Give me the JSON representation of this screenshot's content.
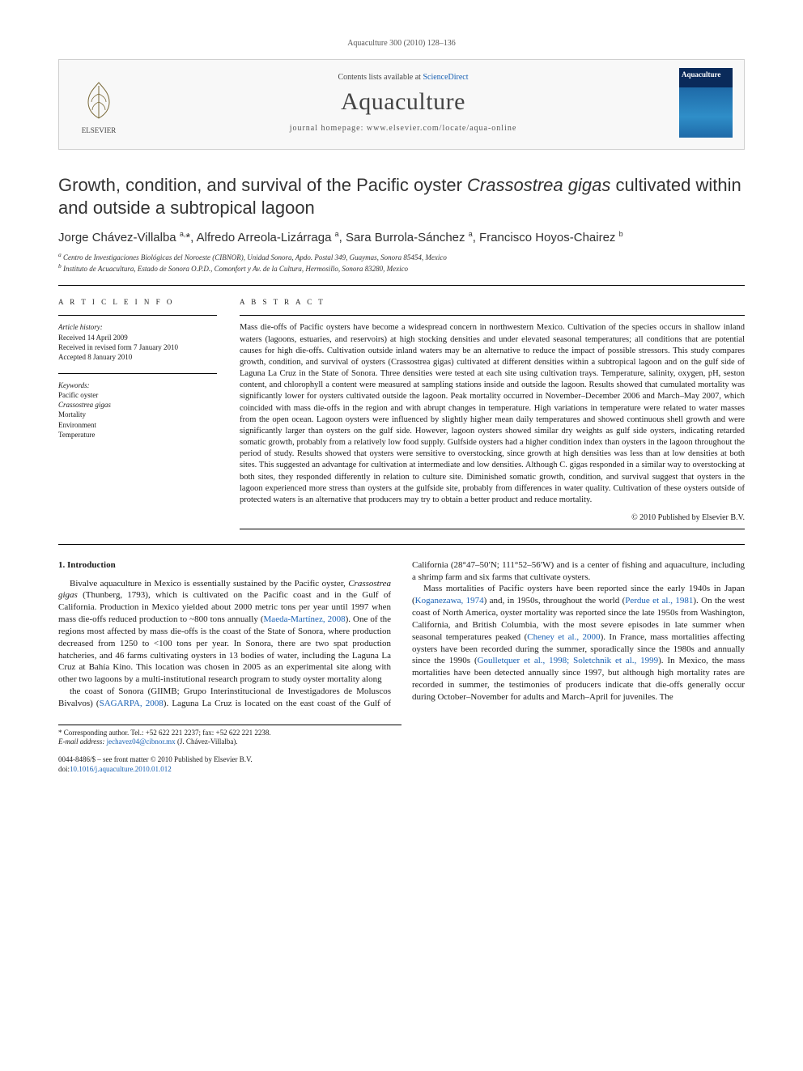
{
  "running_head": "Aquaculture 300 (2010) 128–136",
  "header": {
    "contents_line_pre": "Contents lists available at ",
    "contents_link": "ScienceDirect",
    "journal": "Aquaculture",
    "homepage_label": "journal homepage: ",
    "homepage_url": "www.elsevier.com/locate/aqua-online",
    "publisher": "ELSEVIER",
    "cover_label": "Aquaculture"
  },
  "title_html": "Growth, condition, and survival of the Pacific oyster <em>Crassostrea gigas</em> cultivated within and outside a subtropical lagoon",
  "authors_html": "Jorge Chávez-Villalba <sup>a,</sup>*, Alfredo Arreola-Lizárraga <sup>a</sup>, Sara Burrola-Sánchez <sup>a</sup>, Francisco Hoyos-Chairez <sup>b</sup>",
  "affiliations": {
    "a": "Centro de Investigaciones Biológicas del Noroeste (CIBNOR), Unidad Sonora, Apdo. Postal 349, Guaymas, Sonora 85454, Mexico",
    "b": "Instituto de Acuacultura, Estado de Sonora O.P.D., Comonfort y Av. de la Cultura, Hermosillo, Sonora 83280, Mexico"
  },
  "article_info": {
    "heading": "A R T I C L E   I N F O",
    "history_label": "Article history:",
    "history": [
      "Received 14 April 2009",
      "Received in revised form 7 January 2010",
      "Accepted 8 January 2010"
    ],
    "keywords_label": "Keywords:",
    "keywords": [
      "Pacific oyster",
      "Crassostrea gigas",
      "Mortality",
      "Environment",
      "Temperature"
    ]
  },
  "abstract": {
    "heading": "A B S T R A C T",
    "text": "Mass die-offs of Pacific oysters have become a widespread concern in northwestern Mexico. Cultivation of the species occurs in shallow inland waters (lagoons, estuaries, and reservoirs) at high stocking densities and under elevated seasonal temperatures; all conditions that are potential causes for high die-offs. Cultivation outside inland waters may be an alternative to reduce the impact of possible stressors. This study compares growth, condition, and survival of oysters (Crassostrea gigas) cultivated at different densities within a subtropical lagoon and on the gulf side of Laguna La Cruz in the State of Sonora. Three densities were tested at each site using cultivation trays. Temperature, salinity, oxygen, pH, seston content, and chlorophyll a content were measured at sampling stations inside and outside the lagoon. Results showed that cumulated mortality was significantly lower for oysters cultivated outside the lagoon. Peak mortality occurred in November–December 2006 and March–May 2007, which coincided with mass die-offs in the region and with abrupt changes in temperature. High variations in temperature were related to water masses from the open ocean. Lagoon oysters were influenced by slightly higher mean daily temperatures and showed continuous shell growth and were significantly larger than oysters on the gulf side. However, lagoon oysters showed similar dry weights as gulf side oysters, indicating retarded somatic growth, probably from a relatively low food supply. Gulfside oysters had a higher condition index than oysters in the lagoon throughout the period of study. Results showed that oysters were sensitive to overstocking, since growth at high densities was less than at low densities at both sites. This suggested an advantage for cultivation at intermediate and low densities. Although C. gigas responded in a similar way to overstocking at both sites, they responded differently in relation to culture site. Diminished somatic growth, condition, and survival suggest that oysters in the lagoon experienced more stress than oysters at the gulfside site, probably from differences in water quality. Cultivation of these oysters outside of protected waters is an alternative that producers may try to obtain a better product and reduce mortality.",
    "copyright": "© 2010 Published by Elsevier B.V."
  },
  "body": {
    "section_heading": "1. Introduction",
    "p1_html": "Bivalve aquaculture in Mexico is essentially sustained by the Pacific oyster, <em>Crassostrea gigas</em> (Thunberg, 1793), which is cultivated on the Pacific coast and in the Gulf of California. Production in Mexico yielded about 2000 metric tons per year until 1997 when mass die-offs reduced production to ~800 tons annually (<a href=\"#\" data-name=\"ref-link\" data-interactable=\"true\">Maeda-Martínez, 2008</a>). One of the regions most affected by mass die-offs is the coast of the State of Sonora, where production decreased from 1250 to &lt;100 tons per year. In Sonora, there are two spat production hatcheries, and 46 farms cultivating oysters in 13 bodies of water, including the Laguna La Cruz at Bahía Kino. This location was chosen in 2005 as an experimental site along with other two lagoons by a multi-institutional research program to study oyster mortality along",
    "p2_html": "the coast of Sonora (GIIMB; Grupo Interinstitucional de Investigadores de Moluscos Bivalvos) (<a href=\"#\" data-name=\"ref-link\" data-interactable=\"true\">SAGARPA, 2008</a>). Laguna La Cruz is located on the east coast of the Gulf of California (28°47–50′N; 111°52–56′W) and is a center of fishing and aquaculture, including a shrimp farm and six farms that cultivate oysters.",
    "p3_html": "Mass mortalities of Pacific oysters have been reported since the early 1940s in Japan (<a href=\"#\" data-name=\"ref-link\" data-interactable=\"true\">Koganezawa, 1974</a>) and, in 1950s, throughout the world (<a href=\"#\" data-name=\"ref-link\" data-interactable=\"true\">Perdue et al., 1981</a>). On the west coast of North America, oyster mortality was reported since the late 1950s from Washington, California, and British Columbia, with the most severe episodes in late summer when seasonal temperatures peaked (<a href=\"#\" data-name=\"ref-link\" data-interactable=\"true\">Cheney et al., 2000</a>). In France, mass mortalities affecting oysters have been recorded during the summer, sporadically since the 1980s and annually since the 1990s (<a href=\"#\" data-name=\"ref-link\" data-interactable=\"true\">Goulletquer et al., 1998; Soletchnik et al., 1999</a>). In Mexico, the mass mortalities have been detected annually since 1997, but although high mortality rates are recorded in summer, the testimonies of producers indicate that die-offs generally occur during October–November for adults and March–April for juveniles. The"
  },
  "footnote": {
    "corr_label": "* Corresponding author. Tel.: +52 622 221 2237; fax: +52 622 221 2238.",
    "email_label": "E-mail address:",
    "email": "jechavez04@cibnor.mx",
    "email_owner": "(J. Chávez-Villalba)."
  },
  "bottom": {
    "line1": "0044-8486/$ – see front matter © 2010 Published by Elsevier B.V.",
    "doi_label": "doi:",
    "doi": "10.1016/j.aquaculture.2010.01.012"
  },
  "colors": {
    "link": "#1860b3",
    "rule": "#000000",
    "box_border": "#cfcfcf",
    "box_bg": "#f8f8f8",
    "text": "#1a1a1a",
    "muted": "#555555"
  }
}
